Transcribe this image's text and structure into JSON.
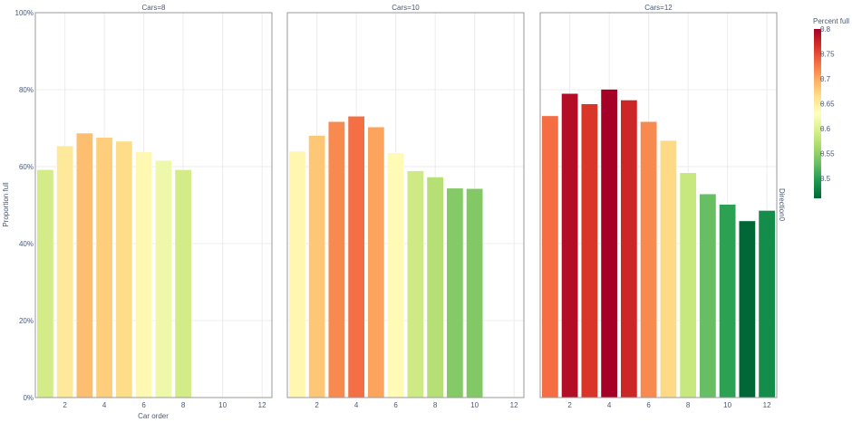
{
  "chart_data": {
    "type": "bar",
    "ylabel": "Proportion full",
    "xlabel": "Car order",
    "ylim": [
      0,
      1
    ],
    "y_ticks": [
      "0%",
      "20%",
      "40%",
      "60%",
      "80%",
      "100%"
    ],
    "x_ticks": [
      2,
      4,
      6,
      8,
      10,
      12
    ],
    "xlim": [
      0.5,
      12.5
    ],
    "grid": true,
    "strip_label": "Direction0",
    "colorbar": {
      "title": "Percent full",
      "range": [
        0.46,
        0.8
      ],
      "ticks": [
        "0.5",
        "0.55",
        "0.6",
        "0.65",
        "0.7",
        "0.75",
        "0.8"
      ]
    },
    "panels": [
      {
        "title": "Cars=8",
        "x": [
          1,
          2,
          3,
          4,
          5,
          6,
          7,
          8
        ],
        "values": [
          0.592,
          0.654,
          0.687,
          0.676,
          0.666,
          0.638,
          0.616,
          0.592
        ]
      },
      {
        "title": "Cars=10",
        "x": [
          1,
          2,
          3,
          4,
          5,
          6,
          7,
          8,
          9,
          10
        ],
        "values": [
          0.64,
          0.681,
          0.717,
          0.731,
          0.703,
          0.636,
          0.589,
          0.573,
          0.544,
          0.543
        ]
      },
      {
        "title": "Cars=12",
        "x": [
          1,
          2,
          3,
          4,
          5,
          6,
          7,
          8,
          9,
          10,
          11,
          12
        ],
        "values": [
          0.732,
          0.79,
          0.763,
          0.801,
          0.773,
          0.717,
          0.668,
          0.584,
          0.529,
          0.502,
          0.459,
          0.486
        ]
      }
    ]
  }
}
